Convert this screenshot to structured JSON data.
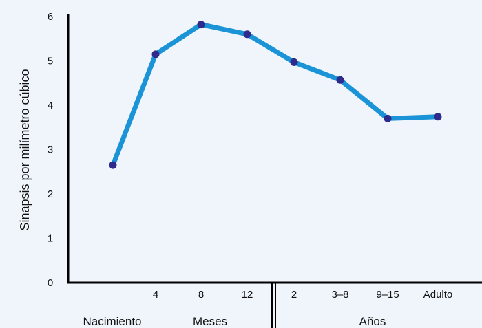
{
  "chart_data": {
    "type": "line",
    "ylabel": "Sinapsis por milímetro cúbico",
    "y_ticks": [
      "0",
      "1",
      "2",
      "3",
      "4",
      "5",
      "6"
    ],
    "ylim": [
      0,
      6
    ],
    "categories": [
      "",
      "4",
      "8",
      "12",
      "2",
      "3–8",
      "9–15",
      "Adulto"
    ],
    "values": [
      2.65,
      5.15,
      5.82,
      5.6,
      4.97,
      4.57,
      3.7,
      3.74
    ],
    "group_labels": [
      "Nacimiento",
      "Meses",
      "Años"
    ],
    "grid": false,
    "colors": {
      "line": "#1a94d6",
      "marker": "#2e2b8c",
      "axis": "#000000",
      "background": "#f0f5fb"
    }
  }
}
